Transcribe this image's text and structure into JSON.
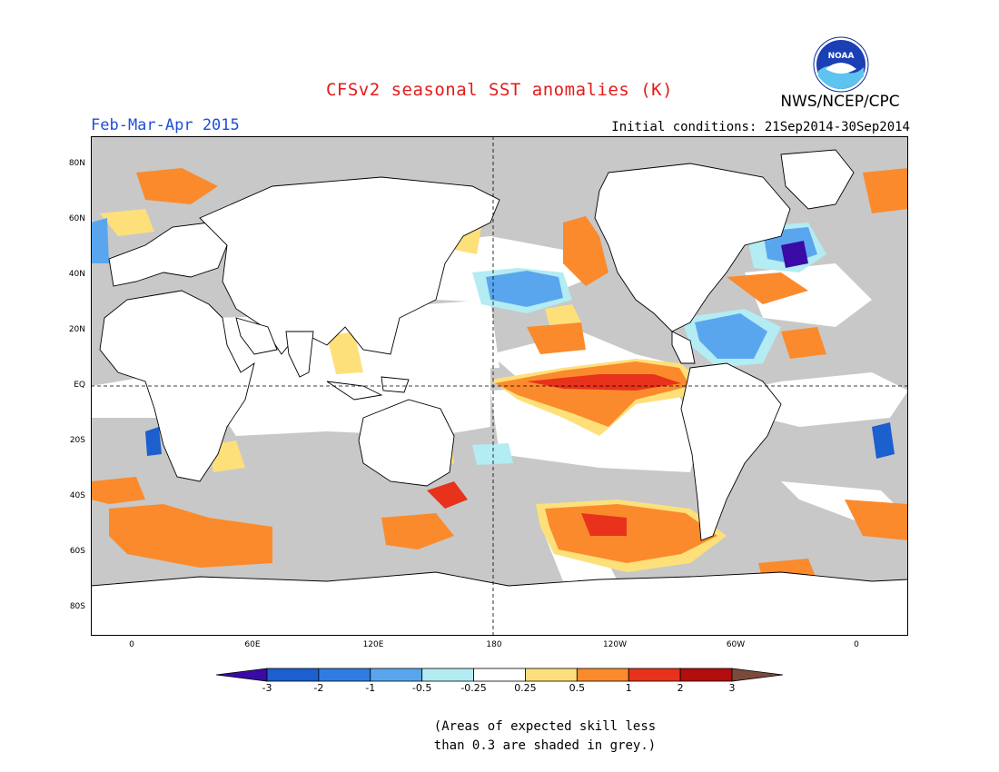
{
  "header": {
    "title": "CFSv2 seasonal SST anomalies (K)",
    "agency": "NWS/NCEP/CPC",
    "period": "Feb-Mar-Apr 2015",
    "initial_conditions": "Initial conditions: 21Sep2014-30Sep2014",
    "logo_text": "NOAA"
  },
  "map": {
    "lat_labels": [
      "80N",
      "60N",
      "40N",
      "20N",
      "EQ",
      "20S",
      "40S",
      "60S",
      "80S"
    ],
    "lon_labels": [
      "0",
      "60E",
      "120E",
      "180",
      "120W",
      "60W",
      "0"
    ],
    "land_color": "#ffffff",
    "ocean_low_skill_color": "#c8c8c8",
    "neutral_color": "#ffffff"
  },
  "colorbar": {
    "labels": [
      "-3",
      "-2",
      "-1",
      "-0.5",
      "-0.25",
      "0.25",
      "0.5",
      "1",
      "2",
      "3"
    ],
    "colors": [
      "#3a0aa6",
      "#1c5fcf",
      "#2f7de1",
      "#5aa6ee",
      "#b3ecf3",
      "#ffffff",
      "#fde07a",
      "#fb8a2c",
      "#e8321b",
      "#b30d0d",
      "#7a4a3a"
    ]
  },
  "note": {
    "line1": "(Areas of expected skill less",
    "line2": "than 0.3 are shaded in grey.)"
  }
}
